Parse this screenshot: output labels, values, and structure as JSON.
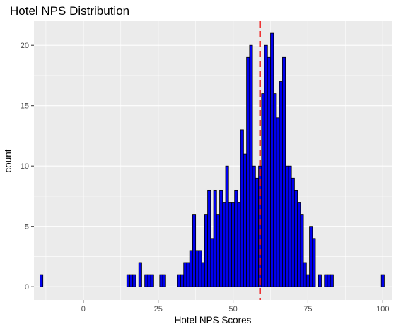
{
  "chart_data": {
    "type": "bar",
    "title": "Hotel NPS Distribution",
    "xlabel": "Hotel NPS Scores",
    "ylabel": "count",
    "bin_width": 1,
    "xlim": [
      -16.5,
      103
    ],
    "ylim": [
      -1.1,
      22
    ],
    "x_ticks": [
      0,
      25,
      50,
      75,
      100
    ],
    "x_tick_labels": [
      "0",
      "25",
      "50",
      "75",
      "100"
    ],
    "y_ticks": [
      0,
      5,
      10,
      15,
      20
    ],
    "y_tick_labels": [
      "0",
      "5",
      "10",
      "15",
      "20"
    ],
    "grid": true,
    "bar_fill": "#0000ee",
    "bar_outline": "#000000",
    "panel_background": "#ebebeb",
    "grid_color": "#ffffff",
    "reference_line": {
      "x": 59,
      "color": "#ee1111",
      "style": "dashed"
    },
    "bins": [
      -14,
      -13,
      -12,
      -11,
      -10,
      -9,
      -8,
      -7,
      -6,
      -5,
      -4,
      -3,
      -2,
      -1,
      0,
      1,
      2,
      3,
      4,
      5,
      6,
      7,
      8,
      9,
      10,
      11,
      12,
      13,
      14,
      15,
      16,
      17,
      18,
      19,
      20,
      21,
      22,
      23,
      24,
      25,
      26,
      27,
      28,
      29,
      30,
      31,
      32,
      33,
      34,
      35,
      36,
      37,
      38,
      39,
      40,
      41,
      42,
      43,
      44,
      45,
      46,
      47,
      48,
      49,
      50,
      51,
      52,
      53,
      54,
      55,
      56,
      57,
      58,
      59,
      60,
      61,
      62,
      63,
      64,
      65,
      66,
      67,
      68,
      69,
      70,
      71,
      72,
      73,
      74,
      75,
      76,
      77,
      78,
      79,
      80,
      81,
      82,
      83,
      84,
      85,
      86,
      87,
      88,
      89,
      90,
      91,
      92,
      93,
      94,
      95,
      96,
      97,
      98,
      99,
      100
    ],
    "values": [
      1,
      0,
      0,
      0,
      0,
      0,
      0,
      0,
      0,
      0,
      0,
      0,
      0,
      0,
      0,
      0,
      0,
      0,
      0,
      0,
      0,
      0,
      0,
      0,
      0,
      0,
      0,
      0,
      0,
      1,
      1,
      1,
      0,
      2,
      0,
      1,
      1,
      1,
      0,
      0,
      1,
      1,
      0,
      0,
      0,
      0,
      1,
      1,
      2,
      2,
      3,
      6,
      3,
      3,
      2,
      6,
      8,
      4,
      8,
      6,
      8,
      7,
      10,
      7,
      7,
      8,
      7,
      13,
      11,
      19,
      20,
      10,
      9,
      10,
      16,
      20,
      19,
      21,
      16,
      14,
      17,
      19,
      10,
      10,
      9,
      8,
      7,
      6,
      2,
      1,
      5,
      4,
      0,
      1,
      0,
      1,
      1,
      1,
      0,
      0,
      0,
      0,
      0,
      0,
      0,
      0,
      0,
      0,
      0,
      0,
      0,
      0,
      0,
      0,
      1
    ]
  }
}
